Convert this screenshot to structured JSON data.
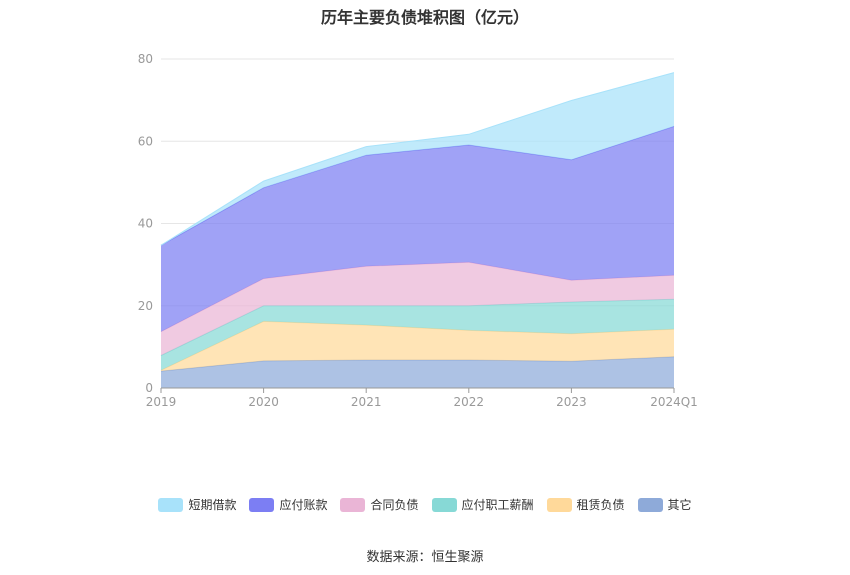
{
  "chart_data": {
    "type": "area",
    "title": "历年主要负债堆积图（亿元）",
    "categories": [
      "2019",
      "2020",
      "2021",
      "2022",
      "2023",
      "2024Q1"
    ],
    "ylim": [
      0,
      80
    ],
    "yticks": [
      "0",
      "20",
      "40",
      "60",
      "80"
    ],
    "stacked": true,
    "grid": true,
    "legend_position": "bottom",
    "series": [
      {
        "name": "其它",
        "color": "#8eaad9",
        "values": [
          4.1,
          6.6,
          6.8,
          6.8,
          6.5,
          7.6
        ]
      },
      {
        "name": "租赁负债",
        "color": "#ffd99a",
        "values": [
          0.2,
          9.6,
          8.5,
          7.2,
          6.7,
          6.7
        ]
      },
      {
        "name": "应付职工薪酬",
        "color": "#87d9d6",
        "values": [
          3.6,
          3.8,
          4.7,
          6.0,
          7.7,
          7.3
        ]
      },
      {
        "name": "合同负债",
        "color": "#eab5d6",
        "values": [
          5.8,
          6.6,
          9.6,
          10.6,
          5.3,
          5.8
        ]
      },
      {
        "name": "应付账款",
        "color": "#7c7ef3",
        "values": [
          21.0,
          22.1,
          27.0,
          28.5,
          29.3,
          36.2
        ]
      },
      {
        "name": "短期借款",
        "color": "#a8e2fa",
        "values": [
          0.0,
          1.6,
          2.1,
          2.6,
          14.4,
          13.1
        ]
      }
    ]
  },
  "legend_order": [
    "短期借款",
    "应付账款",
    "合同负债",
    "应付职工薪酬",
    "租赁负债",
    "其它"
  ],
  "legend_labels": {
    "l0": "短期借款",
    "l1": "应付账款",
    "l2": "合同负债",
    "l3": "应付职工薪酬",
    "l4": "租赁负债",
    "l5": "其它"
  },
  "legend_colors": [
    "#a8e2fa",
    "#7c7ef3",
    "#eab5d6",
    "#87d9d6",
    "#ffd99a",
    "#8eaad9"
  ],
  "source": "数据来源：恒生聚源"
}
